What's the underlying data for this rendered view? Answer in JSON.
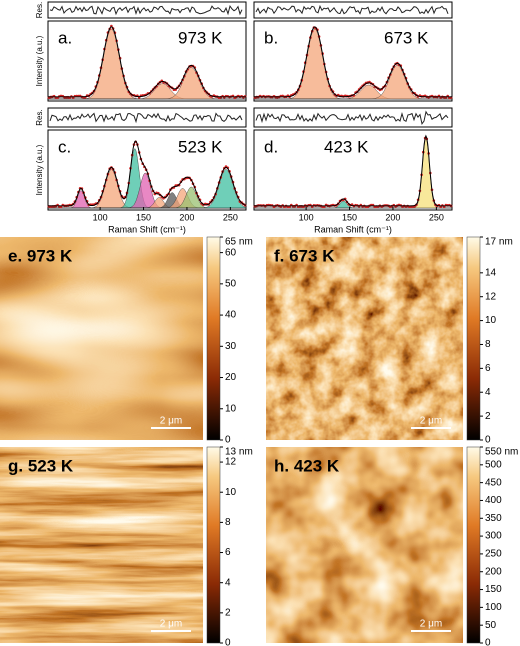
{
  "spectra": {
    "x_axis_label": "Raman Shift (cm⁻¹)",
    "y_axis_label": "Intensity (a.u.)",
    "residual_label": "Res.",
    "x_ticks": [
      100,
      150,
      200,
      250
    ],
    "panels": [
      {
        "label": "a.",
        "temperature": "973 K"
      },
      {
        "label": "b.",
        "temperature": "673 K"
      },
      {
        "label": "c.",
        "temperature": "523 K"
      },
      {
        "label": "d.",
        "temperature": "423 K"
      }
    ]
  },
  "afm": {
    "panels": [
      {
        "label": "e. 973 K",
        "scale_bar": "2 μm",
        "colorbar_ticks": [
          0,
          10,
          20,
          30,
          40,
          50,
          60,
          {
            "value": 65,
            "label": "65 nm"
          }
        ]
      },
      {
        "label": "f. 673 K",
        "scale_bar": "2 μm",
        "colorbar_ticks": [
          0,
          2,
          4,
          6,
          8,
          10,
          12,
          14,
          {
            "value": 17,
            "label": "17 nm"
          }
        ]
      },
      {
        "label": "g. 523 K",
        "scale_bar": "2 μm",
        "colorbar_ticks": [
          0,
          2,
          4,
          6,
          8,
          10,
          12,
          {
            "value": 13,
            "label": "13 nm"
          }
        ]
      },
      {
        "label": "h. 423 K",
        "scale_bar": "2 μm",
        "colorbar_ticks": [
          0,
          50,
          100,
          150,
          200,
          250,
          300,
          350,
          400,
          450,
          500,
          {
            "value": 550,
            "label": "550 nm"
          }
        ]
      }
    ]
  }
}
